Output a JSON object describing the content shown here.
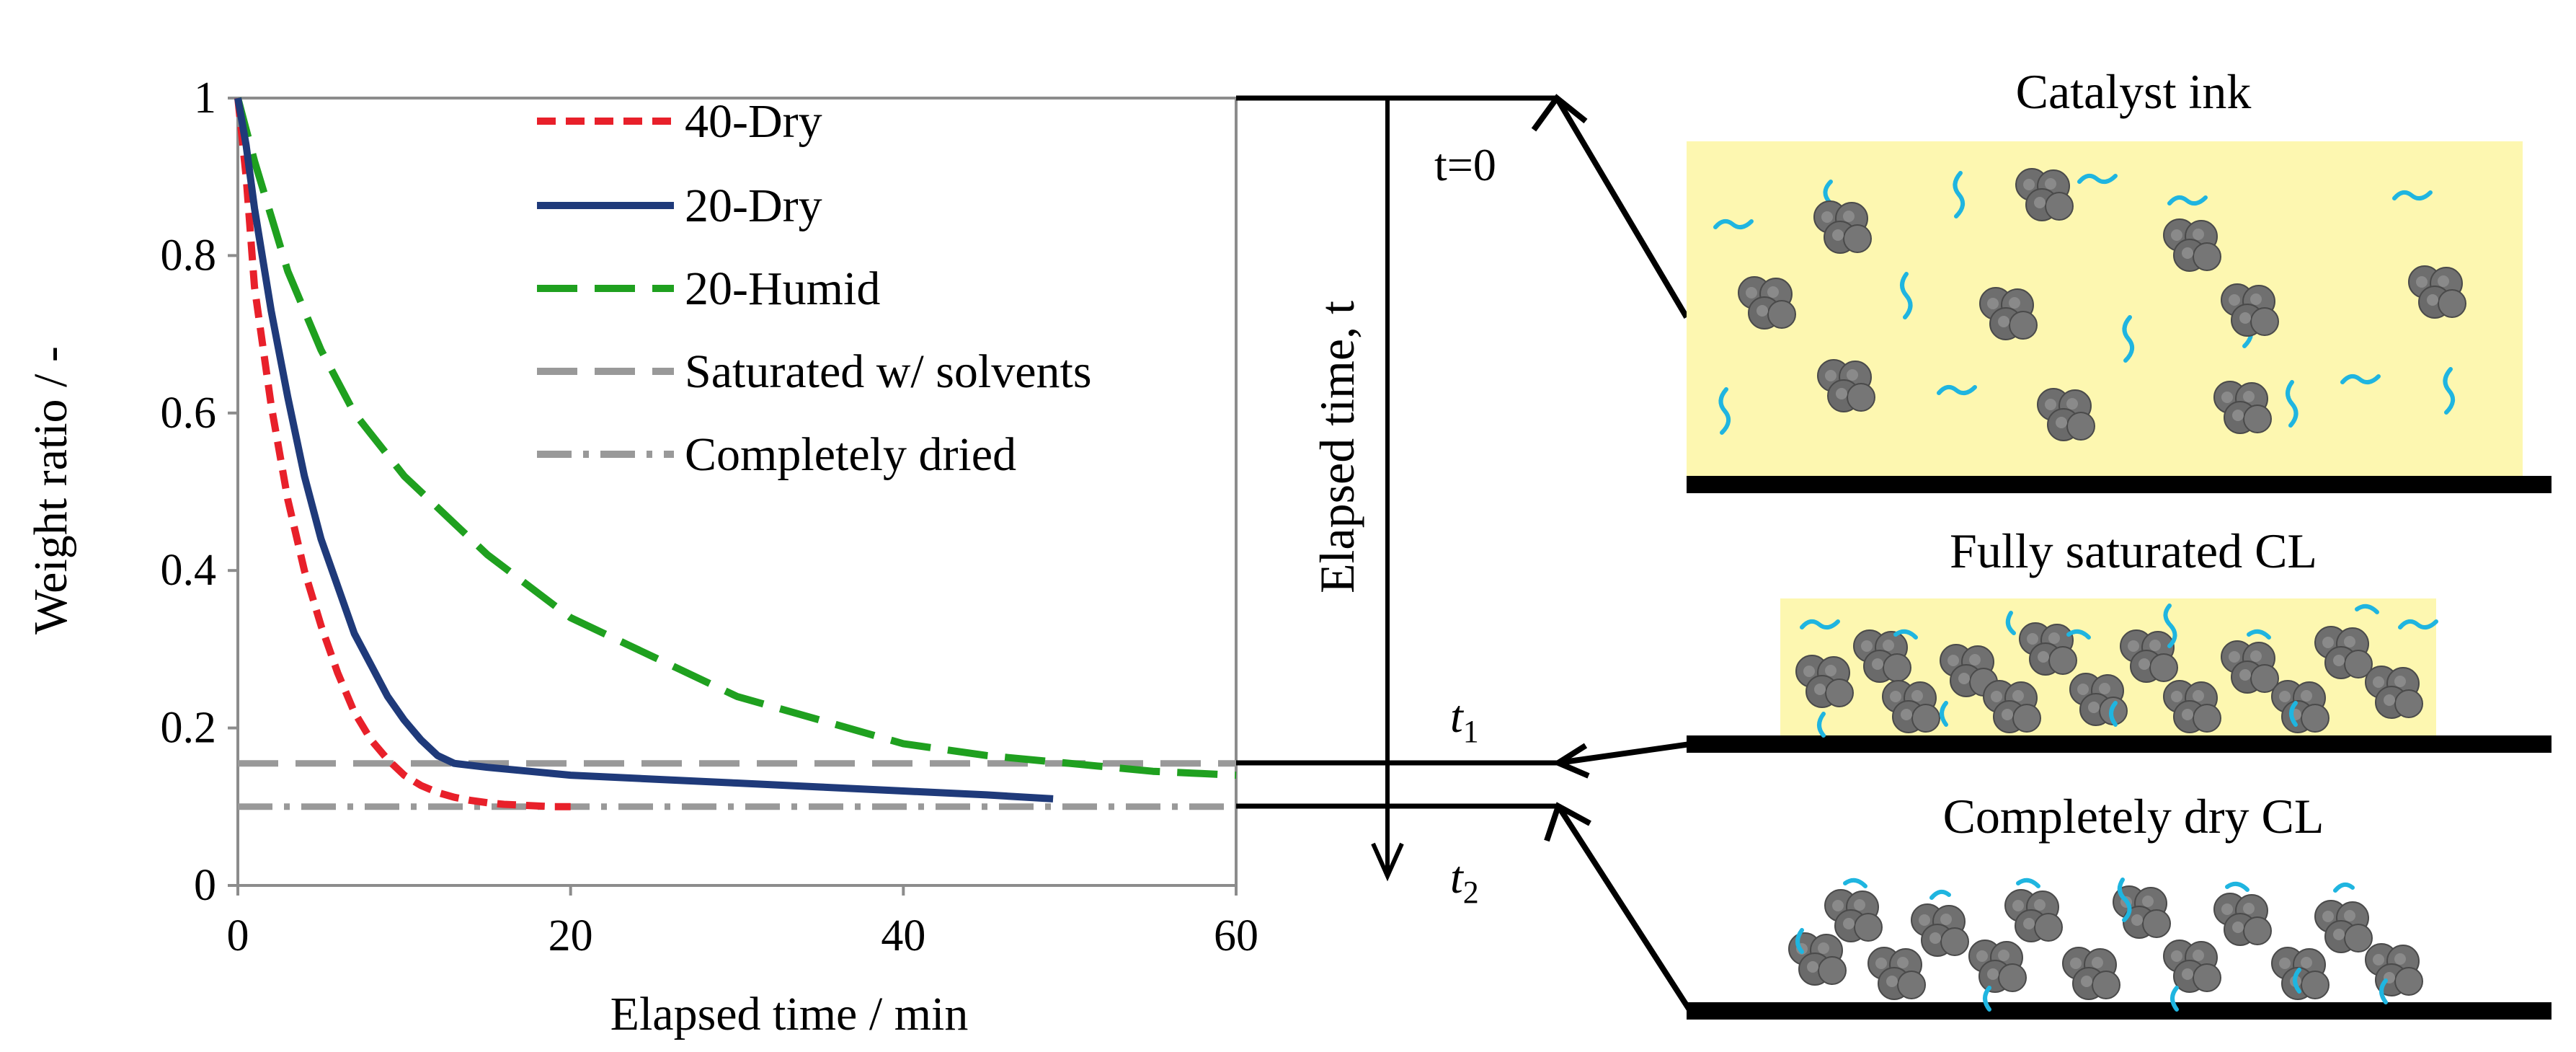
{
  "chart_data": {
    "type": "line",
    "xlabel": "Elapsed time / min",
    "ylabel": "Weight ratio / -",
    "xlim": [
      0,
      60
    ],
    "ylim": [
      0,
      1
    ],
    "xticks": [
      "0",
      "20",
      "40",
      "60"
    ],
    "yticks": [
      "0",
      "0.2",
      "0.4",
      "0.6",
      "0.8",
      "1"
    ],
    "grid": false,
    "legend_position": "top-center",
    "series": [
      {
        "name": "40-Dry",
        "color": "#e8202a",
        "style": "short-dash",
        "x": [
          0,
          0.5,
          1,
          2,
          3,
          4,
          5,
          6,
          7,
          8,
          9,
          10,
          11,
          12,
          13,
          14,
          15,
          16,
          17,
          18,
          19,
          20
        ],
        "y": [
          1.0,
          0.9,
          0.76,
          0.61,
          0.49,
          0.4,
          0.33,
          0.27,
          0.22,
          0.185,
          0.16,
          0.14,
          0.127,
          0.118,
          0.112,
          0.108,
          0.105,
          0.103,
          0.102,
          0.101,
          0.1,
          0.1
        ]
      },
      {
        "name": "20-Dry",
        "color": "#1f3a7a",
        "style": "solid",
        "x": [
          0,
          0.5,
          1,
          2,
          3,
          4,
          5,
          6,
          7,
          8,
          9,
          10,
          11,
          12,
          13,
          15,
          20,
          25,
          30,
          35,
          40,
          45,
          49
        ],
        "y": [
          1.0,
          0.94,
          0.86,
          0.73,
          0.62,
          0.52,
          0.44,
          0.38,
          0.32,
          0.28,
          0.24,
          0.21,
          0.185,
          0.165,
          0.155,
          0.15,
          0.14,
          0.135,
          0.13,
          0.125,
          0.12,
          0.115,
          0.11
        ]
      },
      {
        "name": "20-Humid",
        "color": "#1fa01f",
        "style": "long-dash",
        "x": [
          0,
          1,
          2,
          3,
          5,
          7,
          10,
          13,
          15,
          20,
          25,
          30,
          35,
          40,
          45,
          50,
          55,
          58,
          60
        ],
        "y": [
          1.0,
          0.92,
          0.85,
          0.78,
          0.68,
          0.6,
          0.52,
          0.46,
          0.42,
          0.34,
          0.29,
          0.24,
          0.21,
          0.18,
          0.165,
          0.155,
          0.145,
          0.142,
          0.14
        ]
      },
      {
        "name": "Saturated w/ solvents",
        "color": "#999999",
        "style": "long-dash",
        "x": [
          0,
          60
        ],
        "y": [
          0.155,
          0.155
        ]
      },
      {
        "name": "Completely dried",
        "color": "#999999",
        "style": "dash-dot",
        "x": [
          0,
          60
        ],
        "y": [
          0.1,
          0.1
        ]
      }
    ]
  },
  "diagram": {
    "arrow_label": "Elapsed time, t",
    "t0": "t=0",
    "t1": "t",
    "t1_sub": "1",
    "t2": "t",
    "t2_sub": "2",
    "panels": [
      {
        "title": "Catalyst ink"
      },
      {
        "title": "Fully saturated CL"
      },
      {
        "title": "Completely dry CL"
      }
    ],
    "colors": {
      "ink_fill": "#fdf7b0",
      "solvent": "#1fb5e0",
      "particle": "#6e6e6e",
      "substrate": "#000000"
    }
  }
}
